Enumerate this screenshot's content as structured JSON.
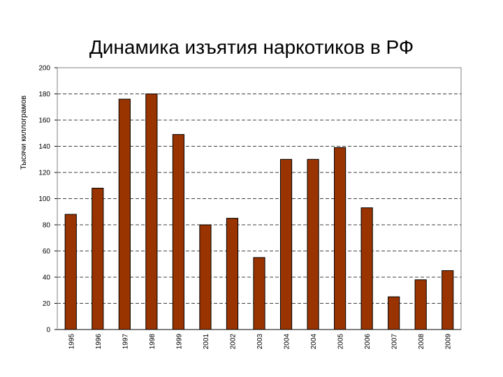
{
  "chart_data": {
    "type": "bar",
    "title": "Динамика изъятия наркотиков в РФ",
    "xlabel": "",
    "ylabel": "Тысячи киллограмов",
    "categories": [
      "1995",
      "1996",
      "1997",
      "1998",
      "1999",
      "2001",
      "2002",
      "2003",
      "2004",
      "2004",
      "2005",
      "2006",
      "2007",
      "2008",
      "2009"
    ],
    "values": [
      88,
      108,
      176,
      180,
      149,
      80,
      85,
      55,
      130,
      130,
      139,
      93,
      25,
      38,
      45
    ],
    "ylim": [
      0,
      200
    ],
    "yticks": [
      0,
      20,
      40,
      60,
      80,
      100,
      120,
      140,
      160,
      180,
      200
    ],
    "ytick_labels": [
      "0",
      "20",
      "40",
      "60",
      "80",
      "100",
      "120",
      "140",
      "160",
      "180",
      "200"
    ],
    "grid": "horizontal dashed",
    "bar_color": "#993300",
    "legend": "none"
  }
}
